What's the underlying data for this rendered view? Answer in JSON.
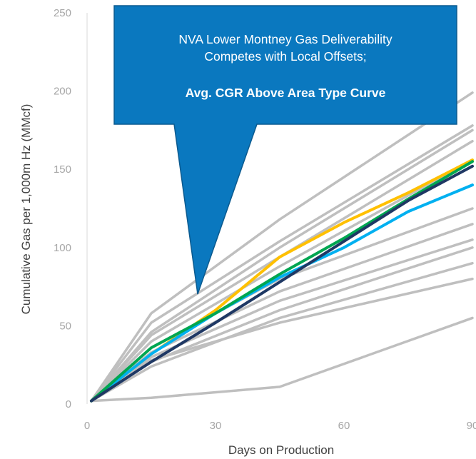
{
  "chart_data": {
    "type": "line",
    "xlabel": "Days on Production",
    "ylabel": "Cumulative Gas per 1,000m Hz  (MMcf)",
    "xlim": [
      0,
      90
    ],
    "ylim": [
      0,
      250
    ],
    "x_ticks": [
      0,
      30,
      60,
      90
    ],
    "x_tick_labels": [
      "0",
      "30",
      "60",
      "90"
    ],
    "y_ticks": [
      0,
      50,
      100,
      150,
      200,
      250
    ],
    "y_tick_labels": [
      "0",
      "50",
      "100",
      "150",
      "200",
      "250"
    ],
    "grid": false,
    "series": [
      {
        "color": "#bfbfbf",
        "points": [
          [
            1,
            2
          ],
          [
            15,
            58
          ],
          [
            45,
            118
          ],
          [
            90,
            199
          ]
        ]
      },
      {
        "color": "#bfbfbf",
        "points": [
          [
            1,
            2
          ],
          [
            15,
            52
          ],
          [
            45,
            104
          ],
          [
            90,
            178
          ]
        ]
      },
      {
        "color": "#bfbfbf",
        "points": [
          [
            1,
            2
          ],
          [
            15,
            46
          ],
          [
            45,
            100
          ],
          [
            90,
            175
          ]
        ]
      },
      {
        "color": "#bfbfbf",
        "points": [
          [
            1,
            2
          ],
          [
            15,
            44
          ],
          [
            45,
            94
          ],
          [
            90,
            168
          ]
        ]
      },
      {
        "color": "#bfbfbf",
        "points": [
          [
            1,
            2
          ],
          [
            15,
            40
          ],
          [
            45,
            88
          ],
          [
            90,
            156
          ]
        ]
      },
      {
        "color": "#bfbfbf",
        "points": [
          [
            1,
            2
          ],
          [
            15,
            36
          ],
          [
            45,
            80
          ],
          [
            90,
            125
          ]
        ]
      },
      {
        "color": "#bfbfbf",
        "points": [
          [
            1,
            2
          ],
          [
            15,
            33
          ],
          [
            45,
            72
          ],
          [
            90,
            115
          ]
        ]
      },
      {
        "color": "#bfbfbf",
        "points": [
          [
            1,
            2
          ],
          [
            15,
            30
          ],
          [
            45,
            66
          ],
          [
            90,
            105
          ]
        ]
      },
      {
        "color": "#bfbfbf",
        "points": [
          [
            1,
            2
          ],
          [
            15,
            27
          ],
          [
            45,
            60
          ],
          [
            90,
            100
          ]
        ]
      },
      {
        "color": "#bfbfbf",
        "points": [
          [
            1,
            2
          ],
          [
            15,
            24
          ],
          [
            45,
            55
          ],
          [
            90,
            90
          ]
        ]
      },
      {
        "color": "#bfbfbf",
        "points": [
          [
            1,
            2
          ],
          [
            15,
            28
          ],
          [
            45,
            52
          ],
          [
            90,
            80
          ]
        ]
      },
      {
        "color": "#bfbfbf",
        "points": [
          [
            1,
            2
          ],
          [
            15,
            4
          ],
          [
            45,
            11
          ],
          [
            90,
            55
          ]
        ]
      },
      {
        "color": "#ffc000",
        "points": [
          [
            1,
            2
          ],
          [
            15,
            32
          ],
          [
            30,
            60
          ],
          [
            45,
            94
          ],
          [
            60,
            116
          ],
          [
            75,
            135
          ],
          [
            90,
            156
          ]
        ]
      },
      {
        "color": "#00b0f0",
        "points": [
          [
            1,
            2
          ],
          [
            15,
            32
          ],
          [
            30,
            58
          ],
          [
            45,
            81
          ],
          [
            60,
            100
          ],
          [
            75,
            123
          ],
          [
            90,
            140
          ]
        ]
      },
      {
        "color": "#00a651",
        "points": [
          [
            1,
            2
          ],
          [
            15,
            36
          ],
          [
            30,
            58
          ],
          [
            45,
            83
          ],
          [
            60,
            106
          ],
          [
            75,
            131
          ],
          [
            90,
            155
          ]
        ]
      },
      {
        "color": "#1f3864",
        "points": [
          [
            1,
            2
          ],
          [
            15,
            27
          ],
          [
            30,
            52
          ],
          [
            45,
            78
          ],
          [
            60,
            104
          ],
          [
            75,
            130
          ],
          [
            90,
            152
          ]
        ]
      }
    ]
  },
  "callout": {
    "line1": "NVA Lower Montney Gas Deliverability",
    "line2": "Competes with Local Offsets;",
    "line3": "Avg. CGR Above Area Type Curve",
    "fill": "#0a78bf",
    "stroke": "#0b5a8f"
  }
}
